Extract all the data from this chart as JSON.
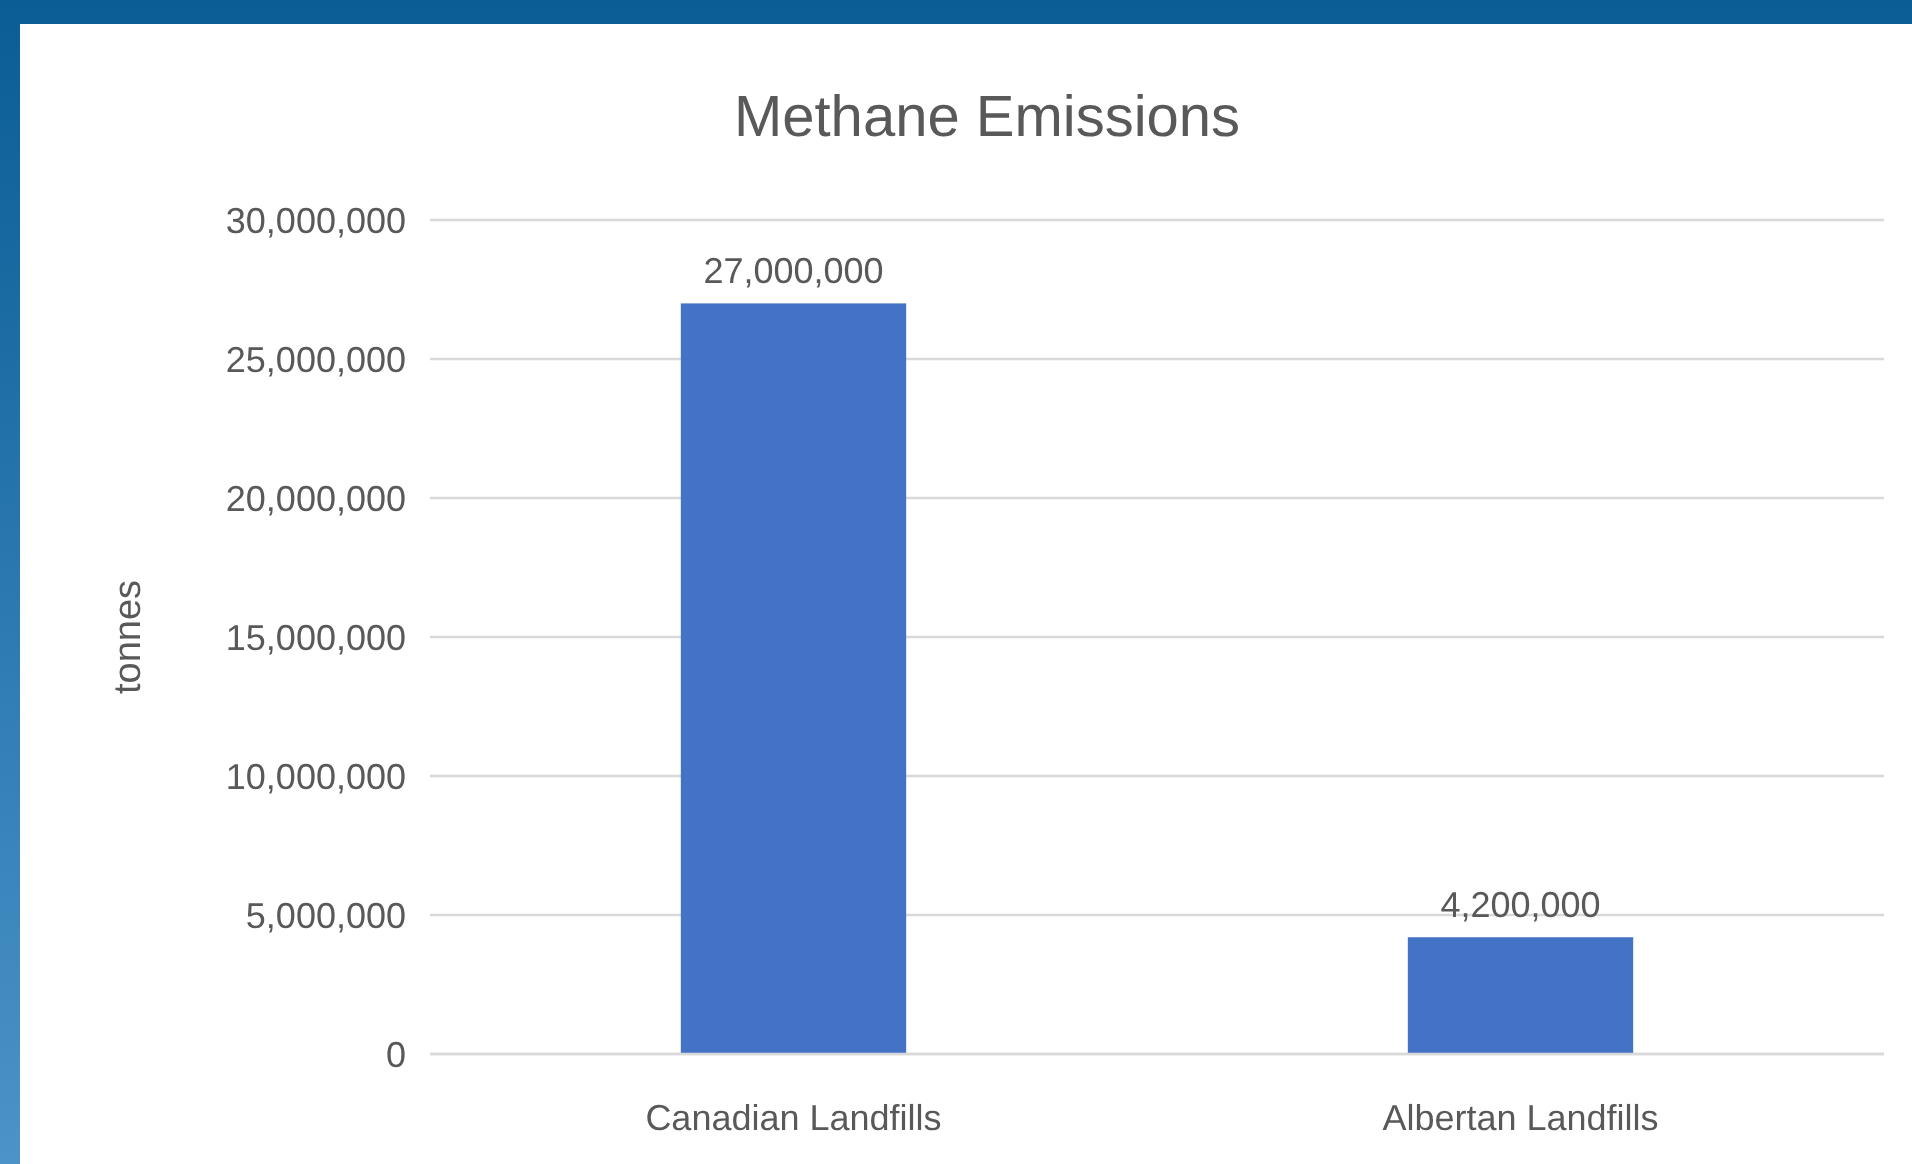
{
  "chart_data": {
    "type": "bar",
    "title": "Methane Emissions",
    "ylabel": "tonnes",
    "categories": [
      "Canadian Landfills",
      "Albertan Landfills"
    ],
    "values": [
      27000000,
      4200000
    ],
    "color": "#4472c4",
    "ylim": [
      0,
      30000000
    ],
    "yticks": [
      {
        "value": 0,
        "label": "0"
      },
      {
        "value": 5000000,
        "label": "5,000,000"
      },
      {
        "value": 10000000,
        "label": "10,000,000"
      },
      {
        "value": 15000000,
        "label": "15,000,000"
      },
      {
        "value": 20000000,
        "label": "20,000,000"
      },
      {
        "value": 25000000,
        "label": "25,000,000"
      },
      {
        "value": 30000000,
        "label": "30,000,000"
      }
    ],
    "value_labels": [
      "27,000,000",
      "4,200,000"
    ],
    "grid": "y"
  }
}
